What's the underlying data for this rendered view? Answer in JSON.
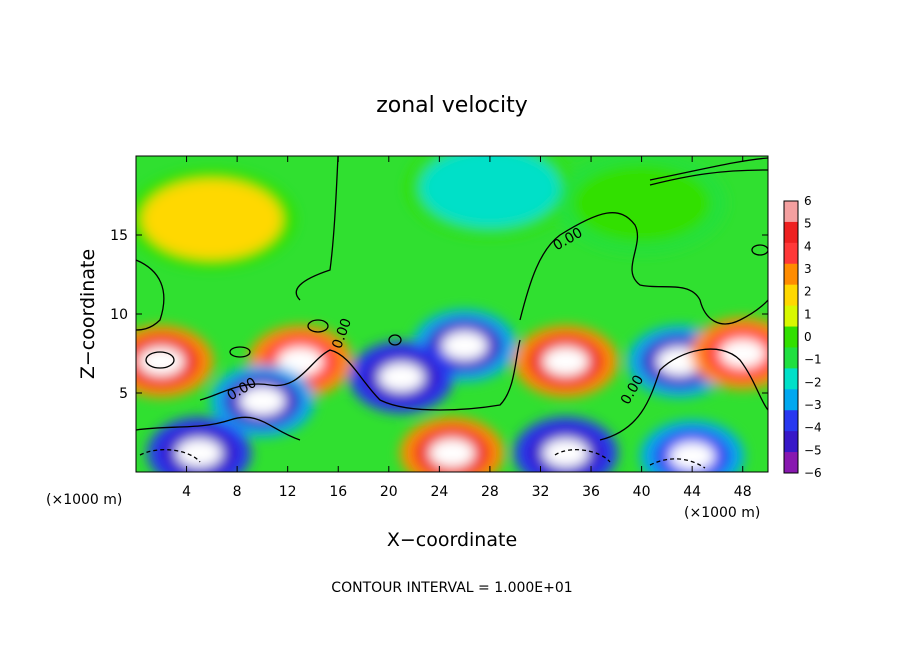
{
  "chart_data": {
    "type": "heatmap",
    "title": "zonal velocity",
    "xlabel": "X−coordinate",
    "ylabel": "Z−coordinate",
    "x_unit_label": "(×1000 m)",
    "x_unit_label_right": "(×1000 m)",
    "xlim": [
      0,
      50
    ],
    "ylim": [
      0,
      20
    ],
    "x_ticks": [
      4,
      8,
      12,
      16,
      20,
      24,
      28,
      32,
      36,
      40,
      44,
      48
    ],
    "x_tick_labels": [
      "4",
      "8",
      "12",
      "16",
      "20",
      "24",
      "28",
      "32",
      "36",
      "40",
      "44",
      "48"
    ],
    "y_ticks": [
      5,
      10,
      15
    ],
    "y_tick_labels": [
      "5",
      "10",
      "15"
    ],
    "colorbar": {
      "ticks": [
        6,
        5,
        4,
        3,
        2,
        1,
        0,
        -1,
        -2,
        -3,
        -4,
        -5,
        -6
      ],
      "tick_labels": [
        "6",
        "5",
        "4",
        "3",
        "2",
        "1",
        "0",
        "−1",
        "−2",
        "−3",
        "−4",
        "−5",
        "−6"
      ],
      "colors": [
        "#f4a0a0",
        "#ee2020",
        "#ff3838",
        "#ff8c00",
        "#ffd800",
        "#d8f800",
        "#32e000",
        "#20e040",
        "#00e0c8",
        "#00a8f0",
        "#2838f0",
        "#3818c8",
        "#8818b0"
      ]
    },
    "contour_labels": [
      "0.00",
      "0.00",
      "0.00",
      "0.00"
    ],
    "footnote": "CONTOUR INTERVAL = 1.000E+01",
    "features": [
      {
        "x": 6,
        "z": 16,
        "u": 2
      },
      {
        "x": 28,
        "z": 18,
        "u": -1.5
      },
      {
        "x": 40,
        "z": 17,
        "u": 0.5
      },
      {
        "x": 26,
        "z": 8,
        "u": -4.5
      },
      {
        "x": 21,
        "z": 6,
        "u": -5
      },
      {
        "x": 34,
        "z": 7,
        "u": 5
      },
      {
        "x": 2,
        "z": 7,
        "u": 5
      },
      {
        "x": 13,
        "z": 7,
        "u": 4.5
      },
      {
        "x": 10,
        "z": 4.5,
        "u": -4.5
      },
      {
        "x": 43,
        "z": 7,
        "u": -4.5
      },
      {
        "x": 48,
        "z": 7.5,
        "u": 4.5
      },
      {
        "x": 25,
        "z": 1.2,
        "u": 5
      },
      {
        "x": 5,
        "z": 1.2,
        "u": -5
      },
      {
        "x": 34,
        "z": 1.2,
        "u": -5
      },
      {
        "x": 44,
        "z": 1,
        "u": -4
      }
    ]
  }
}
